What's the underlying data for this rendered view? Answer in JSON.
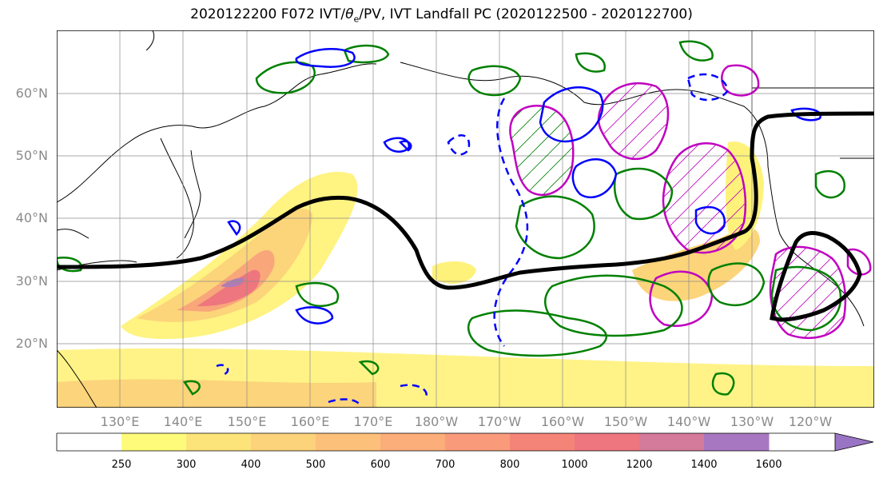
{
  "title": "2020122200 F072 IVT/θe/PV, IVT Landfall PC (2020122500 - 2020122700)",
  "title_parts": {
    "prefix": "2020122200 F072 IVT/",
    "theta": "θ",
    "sub": "e",
    "suffix": "/PV, IVT Landfall PC (2020122500 - 2020122700)"
  },
  "lat_labels": [
    "60°N",
    "50°N",
    "40°N",
    "30°N",
    "20°N"
  ],
  "lon_labels": [
    "130°E",
    "140°E",
    "150°E",
    "160°E",
    "170°E",
    "180°W",
    "170°W",
    "160°W",
    "150°W",
    "140°W",
    "130°W",
    "120°W"
  ],
  "colorbar": {
    "ticks": [
      "250",
      "300",
      "400",
      "500",
      "600",
      "700",
      "800",
      "1000",
      "1200",
      "1400",
      "1600"
    ],
    "colors": [
      "#ffffff",
      "#fffb7a",
      "#fde47a",
      "#fcd27a",
      "#fcc07a",
      "#fbad7a",
      "#f99a7a",
      "#f58478",
      "#ee767e",
      "#d47a9a",
      "#a877c2",
      "#9a74c4"
    ]
  },
  "colors": {
    "ivt_jet": "#000000",
    "theta_e": "#008000",
    "pv_positive": "#0000ff",
    "landfall_pc": "#c000c0"
  }
}
